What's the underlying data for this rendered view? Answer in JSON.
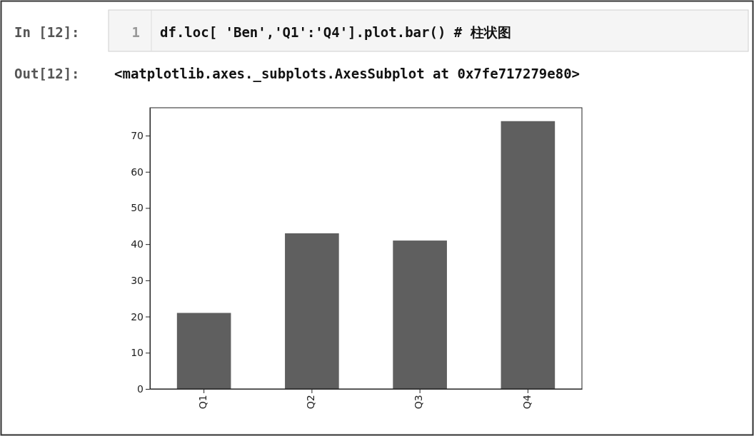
{
  "chart_data": {
    "type": "bar",
    "categories": [
      "Q1",
      "Q2",
      "Q3",
      "Q4"
    ],
    "values": [
      21,
      43,
      41,
      74
    ],
    "color": "#5f5f5f",
    "ylim": [
      0,
      77.7
    ],
    "yticks": [
      0,
      10,
      20,
      30,
      40,
      50,
      60,
      70
    ],
    "grid": false,
    "annotations": [
      "In [12]:",
      "1",
      "df.loc[ 'Ben','Q1':'Q4'].plot.bar() # 柱状图",
      "Out[12]:",
      "<matplotlib.axes._subplots.AxesSubplot at 0x7fe717279e80>"
    ]
  }
}
